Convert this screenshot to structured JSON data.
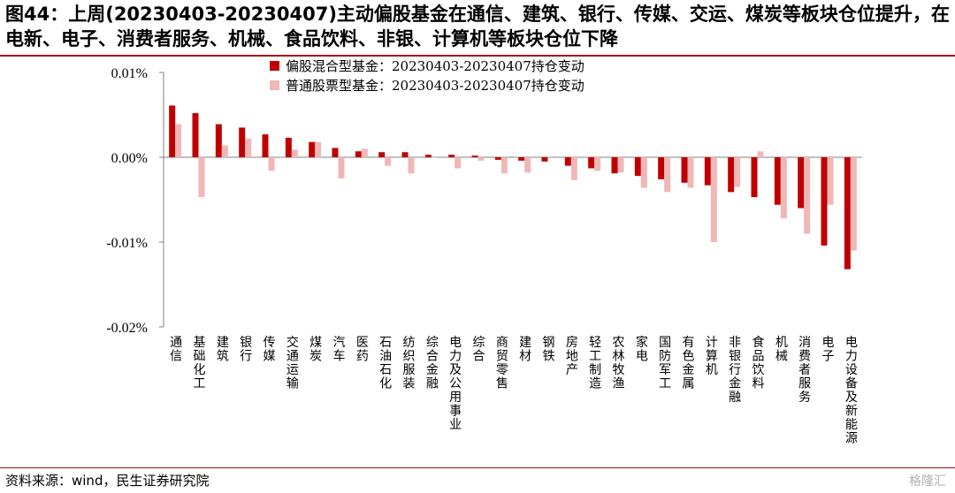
{
  "title": "图44：上周(20230403-20230407)主动偏股基金在通信、建筑、银行、传媒、交运、煤炭等板块仓位提升，在电新、电子、消费者服务、机械、食品饮料、非银、计算机等板块仓位下降",
  "source": "资料来源：wind，民生证券研究院",
  "watermark": "格隆汇",
  "colors": {
    "series1": "#c00000",
    "series2": "#f0b7b7",
    "title_rule": "#9e0a0a"
  },
  "chart_data": {
    "type": "bar",
    "ylim": [
      -0.02,
      0.01
    ],
    "yticks": [
      {
        "value": 0.01,
        "label": "0.01%"
      },
      {
        "value": 0.0,
        "label": "0.00%"
      },
      {
        "value": -0.01,
        "label": "-0.01%"
      },
      {
        "value": -0.02,
        "label": "-0.02%"
      }
    ],
    "legend_position": "top-center",
    "grid": false,
    "categories": [
      "通信",
      "基础化工",
      "建筑",
      "银行",
      "传媒",
      "交通运输",
      "煤炭",
      "汽车",
      "医药",
      "石油石化",
      "纺织服装",
      "综合金融",
      "电力及公用事业",
      "综合",
      "商贸零售",
      "建材",
      "钢铁",
      "房地产",
      "轻工制造",
      "农林牧渔",
      "家电",
      "国防军工",
      "有色金属",
      "计算机",
      "非银行金融",
      "食品饮料",
      "机械",
      "消费者服务",
      "电子",
      "电力设备及新能源"
    ],
    "series": [
      {
        "name": "偏股混合型基金：20230403-20230407持仓变动",
        "values": [
          0.0061,
          0.0052,
          0.0039,
          0.0035,
          0.0027,
          0.0023,
          0.0018,
          0.0011,
          0.0007,
          0.0006,
          0.0006,
          0.0003,
          0.0003,
          0.0002,
          -0.0003,
          -0.0004,
          -0.0005,
          -0.001,
          -0.0013,
          -0.0019,
          -0.0022,
          -0.0026,
          -0.003,
          -0.0033,
          -0.0041,
          -0.0047,
          -0.0056,
          -0.006,
          -0.0104,
          -0.0132
        ]
      },
      {
        "name": "普通股票型基金：20230403-20230407持仓变动",
        "values": [
          0.0039,
          -0.0047,
          0.0014,
          0.0022,
          -0.0016,
          0.0009,
          0.0018,
          -0.0025,
          0.001,
          -0.001,
          -0.0019,
          0.0,
          -0.0013,
          -0.0004,
          -0.0019,
          -0.0018,
          -0.0001,
          -0.0027,
          -0.0016,
          -0.0018,
          -0.0036,
          -0.0041,
          -0.0036,
          -0.01,
          -0.0035,
          0.0007,
          -0.0072,
          -0.009,
          -0.0056,
          -0.011
        ]
      }
    ]
  }
}
